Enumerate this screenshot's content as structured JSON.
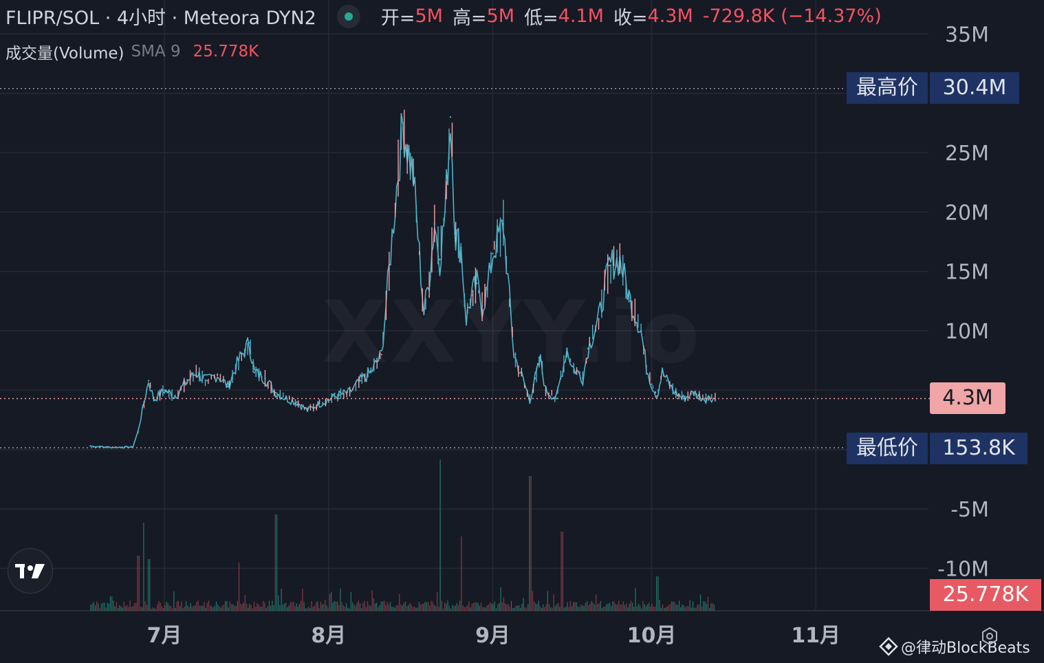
{
  "header": {
    "symbol_title": "FLIPR/SOL · 4小时 · Meteora DYN2",
    "open_label": "开=",
    "open_value": "5M",
    "high_label": "高=",
    "high_value": "5M",
    "low_label": "低=",
    "low_value": "4.1M",
    "close_label": "收=",
    "close_value": "4.3M",
    "change_value": "-729.8K (−14.37%)"
  },
  "volume_legend": {
    "label": "成交量(Volume)",
    "indicator": "SMA 9",
    "value": "25.778K"
  },
  "markers": {
    "high_label": "最高价",
    "high_value": "30.4M",
    "low_label": "最低价",
    "low_value": "153.8K",
    "last_price": "4.3M",
    "volume_sma": "25.778K"
  },
  "watermark": "XXYY.io",
  "credit": "@律动BlockBeats",
  "colors": {
    "background": "#161a25",
    "up": "#4fb3c8",
    "down": "#f0a0a6",
    "volume_up": "#1e7a6a",
    "volume_down": "#8a3a45",
    "grid": "#262a35",
    "label_text": "#b2b5be",
    "marker_bg": "#1e3263",
    "last_price_bg": "#f0a6a6",
    "volume_tag_bg": "#e85a63"
  },
  "chart_data": {
    "type": "line",
    "title": "FLIPR/SOL · 4小时 · Meteora DYN2",
    "xlabel": "",
    "ylabel": "",
    "x_ticks": [
      "7月",
      "8月",
      "9月",
      "10月",
      "11月"
    ],
    "y_ticks": [
      "35M",
      "25M",
      "20M",
      "15M",
      "10M",
      "-5M",
      "-10M"
    ],
    "ylim": [
      -12.5,
      38
    ],
    "grid": true,
    "legend": "none",
    "series": [
      {
        "name": "",
        "x": [
          "06-17",
          "06-20",
          "06-23",
          "06-25",
          "06-26",
          "06-28",
          "06-29",
          "07-01",
          "07-03",
          "07-05",
          "07-07",
          "07-09",
          "07-11",
          "07-13",
          "07-15",
          "07-17",
          "07-18",
          "07-20",
          "07-22",
          "07-24",
          "07-26",
          "07-28",
          "07-30",
          "08-01",
          "08-03",
          "08-05",
          "08-07",
          "08-09",
          "08-11",
          "08-13",
          "08-15",
          "08-17",
          "08-19",
          "08-20",
          "08-21",
          "08-22",
          "08-23",
          "08-24",
          "08-25",
          "08-26",
          "08-27",
          "08-28",
          "08-29",
          "08-30",
          "08-31",
          "09-01",
          "09-03",
          "09-05",
          "09-07",
          "09-08",
          "09-09",
          "09-10",
          "09-11",
          "09-13",
          "09-15",
          "09-16",
          "09-18",
          "09-19",
          "09-21",
          "09-23",
          "09-25",
          "09-27",
          "09-29",
          "09-30",
          "10-01",
          "10-02",
          "10-03",
          "10-05",
          "10-07",
          "10-09",
          "10-10",
          "10-11",
          "10-12",
          "10-13"
        ],
        "values": [
          0.3,
          0.2,
          0.2,
          0.2,
          1.5,
          5.8,
          4.2,
          5.0,
          4.5,
          5.6,
          6.5,
          5.8,
          6.3,
          5.3,
          7.5,
          9.0,
          6.5,
          6.0,
          4.8,
          4.3,
          4.0,
          3.3,
          3.8,
          4.2,
          4.6,
          4.8,
          5.8,
          6.5,
          8.0,
          18.0,
          27.5,
          23.0,
          11.5,
          14.5,
          19.0,
          16.0,
          20.0,
          28.0,
          18.0,
          17.0,
          11.0,
          13.0,
          14.0,
          12.0,
          13.5,
          16.5,
          19.0,
          8.0,
          5.5,
          4.2,
          6.0,
          7.5,
          5.0,
          4.3,
          8.5,
          7.0,
          6.0,
          8.5,
          11.0,
          15.5,
          16.0,
          12.5,
          10.0,
          7.0,
          5.5,
          4.5,
          6.5,
          5.0,
          4.3,
          4.8,
          4.5,
          4.3,
          4.4,
          4.3
        ]
      }
    ],
    "volume_sma9": "25.778K",
    "max_price": "30.4M",
    "min_price": "153.8K",
    "last_price": "4.3M"
  }
}
